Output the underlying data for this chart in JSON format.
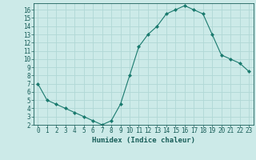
{
  "x": [
    0,
    1,
    2,
    3,
    4,
    5,
    6,
    7,
    8,
    9,
    10,
    11,
    12,
    13,
    14,
    15,
    16,
    17,
    18,
    19,
    20,
    21,
    22,
    23
  ],
  "y": [
    7,
    5,
    4.5,
    4,
    3.5,
    3,
    2.5,
    2,
    2.5,
    4.5,
    8,
    11.5,
    13,
    14,
    15.5,
    16,
    16.5,
    16,
    15.5,
    13,
    10.5,
    10,
    9.5,
    8.5
  ],
  "line_color": "#1a7a6e",
  "marker": "D",
  "marker_size": 2.0,
  "bg_color": "#cceae8",
  "grid_color": "#b0d8d5",
  "xlabel": "Humidex (Indice chaleur)",
  "xlim": [
    -0.5,
    23.5
  ],
  "ylim": [
    2,
    16.8
  ],
  "yticks": [
    2,
    3,
    4,
    5,
    6,
    7,
    8,
    9,
    10,
    11,
    12,
    13,
    14,
    15,
    16
  ],
  "xticks": [
    0,
    1,
    2,
    3,
    4,
    5,
    6,
    7,
    8,
    9,
    10,
    11,
    12,
    13,
    14,
    15,
    16,
    17,
    18,
    19,
    20,
    21,
    22,
    23
  ],
  "font_color": "#1a5f5a",
  "label_fontsize": 6.5,
  "tick_fontsize": 5.5,
  "line_width": 0.8
}
